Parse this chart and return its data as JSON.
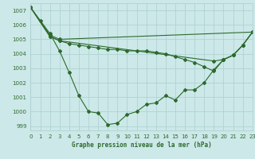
{
  "lines": [
    {
      "x": [
        0,
        1,
        2,
        3,
        4,
        5,
        6,
        7,
        8,
        9,
        10,
        11,
        12,
        13,
        14,
        15,
        16,
        17,
        18,
        19,
        20,
        21,
        22,
        23
      ],
      "y": [
        1007.2,
        1006.3,
        1005.4,
        1004.2,
        1002.7,
        1001.1,
        1000.0,
        999.9,
        999.1,
        999.2,
        999.8,
        1000.0,
        1000.5,
        1000.6,
        1001.1,
        1000.8,
        1001.5,
        1001.5,
        1002.0,
        1002.9,
        1003.6,
        1003.9,
        1004.6,
        1005.5
      ],
      "color": "#2d6a2d",
      "marker": "D",
      "markersize": 2.0,
      "linewidth": 0.8
    },
    {
      "x": [
        0,
        2,
        3,
        23
      ],
      "y": [
        1007.2,
        1005.3,
        1005.0,
        1005.5
      ],
      "color": "#2d6a2d",
      "marker": "D",
      "markersize": 2.0,
      "linewidth": 0.8
    },
    {
      "x": [
        0,
        2,
        3,
        19,
        20,
        21,
        22,
        23
      ],
      "y": [
        1007.2,
        1005.2,
        1004.9,
        1003.5,
        1003.6,
        1003.9,
        1004.6,
        1005.5
      ],
      "color": "#2d6a2d",
      "marker": "D",
      "markersize": 2.0,
      "linewidth": 0.8
    },
    {
      "x": [
        0,
        2,
        3,
        4,
        5,
        6,
        7,
        8,
        9,
        10,
        11,
        12,
        13,
        14,
        15,
        16,
        17,
        18,
        19,
        20,
        21,
        22,
        23
      ],
      "y": [
        1007.2,
        1005.2,
        1004.9,
        1004.7,
        1004.6,
        1004.5,
        1004.4,
        1004.3,
        1004.3,
        1004.2,
        1004.2,
        1004.2,
        1004.1,
        1004.0,
        1003.8,
        1003.6,
        1003.4,
        1003.1,
        1002.8,
        1003.6,
        1003.9,
        1004.6,
        1005.5
      ],
      "color": "#2d6a2d",
      "marker": "D",
      "markersize": 2.0,
      "linewidth": 0.8
    }
  ],
  "xlim": [
    0,
    23
  ],
  "ylim": [
    998.7,
    1007.5
  ],
  "yticks": [
    999,
    1000,
    1001,
    1002,
    1003,
    1004,
    1005,
    1006,
    1007
  ],
  "ytick_labels": [
    "999",
    "1000",
    "1001",
    "1002",
    "1003",
    "1004",
    "1005",
    "1006",
    "1007"
  ],
  "xticks": [
    0,
    1,
    2,
    3,
    4,
    5,
    6,
    7,
    8,
    9,
    10,
    11,
    12,
    13,
    14,
    15,
    16,
    17,
    18,
    19,
    20,
    21,
    22,
    23
  ],
  "xtick_labels": [
    "0",
    "1",
    "2",
    "3",
    "4",
    "5",
    "6",
    "7",
    "8",
    "9",
    "10",
    "11",
    "12",
    "13",
    "14",
    "15",
    "16",
    "17",
    "18",
    "19",
    "20",
    "21",
    "22",
    "23"
  ],
  "xlabel": "Graphe pression niveau de la mer (hPa)",
  "bg_color": "#cce8e8",
  "grid_color": "#aacfcf",
  "line_color": "#2d6a2d",
  "label_color": "#2d6a2d",
  "tick_fontsize": 5,
  "xlabel_fontsize": 5.5
}
